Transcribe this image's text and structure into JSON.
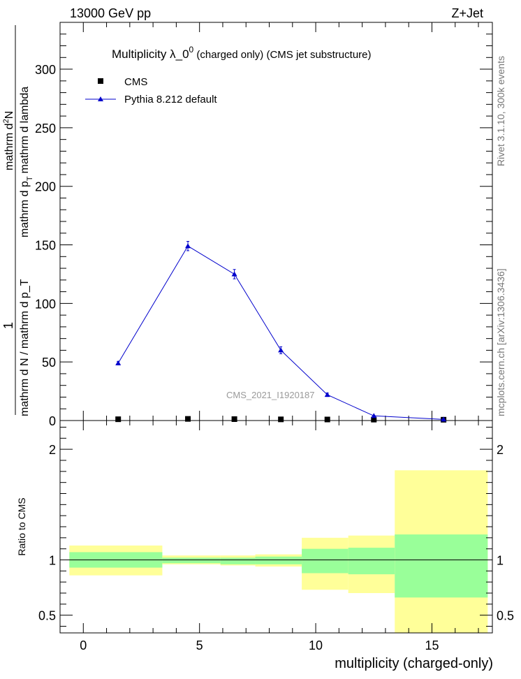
{
  "header": {
    "energy_label": "13000 GeV pp",
    "process_label": "Z+Jet"
  },
  "side_labels": {
    "rivet": "Rivet 3.1.10,  300k events",
    "mcplots": "mcplots.cern.ch [arXiv:1306.3436]"
  },
  "watermark": "CMS_2021_I1920187",
  "chart_data": [
    {
      "type": "line",
      "title_main": "Multiplicity  λ_0",
      "title_sup": "0",
      "title_rest": " (charged only) (CMS jet substructure)",
      "ylabel_numerator": "1",
      "ylabel_denominator_a": "mathrm d N / mathrm d p",
      "ylabel_denominator_b": "_T",
      "ylabel_numerator_full": "mathrm d",
      "ylabel_numerator_sup": "2",
      "ylabel_numerator_rest": "N",
      "ylabel_den2_a": "mathrm d p",
      "ylabel_den2_sub": "T",
      "ylabel_den2_b": "mathrm d lambda",
      "xlim": [
        -1,
        17.6
      ],
      "ylim": [
        0,
        340
      ],
      "yticks": [
        0,
        50,
        100,
        150,
        200,
        250,
        300
      ],
      "legend": [
        {
          "label": "CMS",
          "marker": "square",
          "color": "#000000"
        },
        {
          "label": "Pythia 8.212 default",
          "marker": "triangle",
          "color": "#0000cc"
        }
      ],
      "series": [
        {
          "name": "CMS",
          "x": [
            1.5,
            4.5,
            6.5,
            8.5,
            10.5,
            12.5,
            15.5
          ],
          "values": [
            0.5,
            0.8,
            0.6,
            0.4,
            0.3,
            0.2,
            0.1
          ]
        },
        {
          "name": "Pythia 8.212 default",
          "x": [
            1.5,
            4.5,
            6.5,
            8.5,
            10.5,
            12.5,
            15.5
          ],
          "values": [
            49,
            149,
            125,
            60,
            22,
            4,
            1
          ],
          "errors": [
            1.5,
            4,
            4,
            3,
            1.5,
            0.5,
            0.3
          ]
        }
      ]
    },
    {
      "type": "area",
      "ylabel": "Ratio to CMS",
      "xlabel": "multiplicity (charged-only)",
      "xlim": [
        -1,
        17.6
      ],
      "ylim": [
        0.34,
        2.26
      ],
      "yticks": [
        0.5,
        1,
        2
      ],
      "xticks": [
        0,
        5,
        10,
        15
      ],
      "reference_line": 1,
      "bands": [
        {
          "x_low": -0.6,
          "x_high": 3.4,
          "inner": [
            0.93,
            1.07
          ],
          "outer": [
            0.86,
            1.13
          ]
        },
        {
          "x_low": 3.4,
          "x_high": 5.9,
          "inner": [
            0.97,
            1.02
          ],
          "outer": [
            0.96,
            1.04
          ]
        },
        {
          "x_low": 5.9,
          "x_high": 7.4,
          "inner": [
            0.96,
            1.02
          ],
          "outer": [
            0.95,
            1.04
          ]
        },
        {
          "x_low": 7.4,
          "x_high": 9.4,
          "inner": [
            0.96,
            1.03
          ],
          "outer": [
            0.94,
            1.05
          ]
        },
        {
          "x_low": 9.4,
          "x_high": 11.4,
          "inner": [
            0.88,
            1.1
          ],
          "outer": [
            0.73,
            1.2
          ]
        },
        {
          "x_low": 11.4,
          "x_high": 13.4,
          "inner": [
            0.87,
            1.11
          ],
          "outer": [
            0.7,
            1.22
          ]
        },
        {
          "x_low": 13.4,
          "x_high": 17.4,
          "inner": [
            0.66,
            1.23
          ],
          "outer": [
            0.34,
            1.81
          ]
        }
      ],
      "band_colors": {
        "inner": "#99ff99",
        "outer": "#ffff99"
      }
    }
  ]
}
